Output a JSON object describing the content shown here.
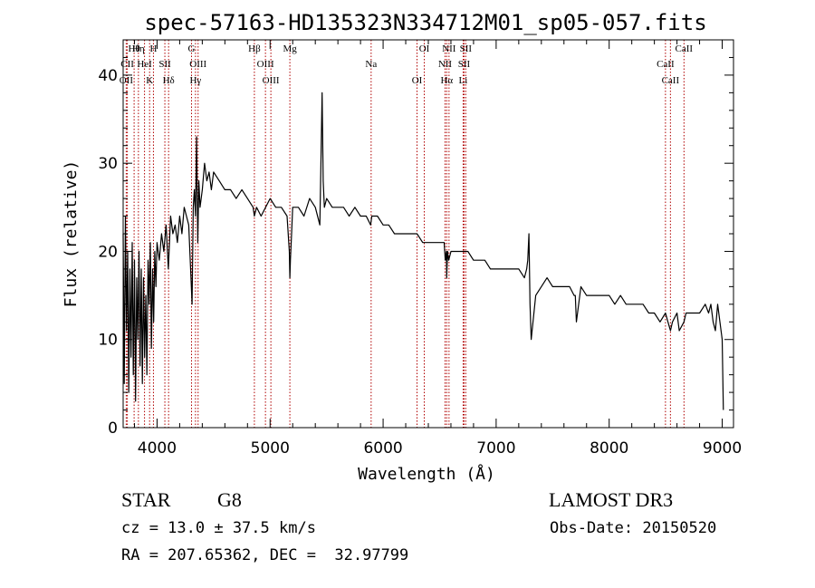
{
  "chart_data": {
    "type": "line",
    "title": "spec-57163-HD135323N334712M01_sp05-057.fits",
    "xlabel": "Wavelength (Å)",
    "ylabel": "Flux (relative)",
    "xlim": [
      3700,
      9100
    ],
    "ylim": [
      0,
      44
    ],
    "xticks": [
      4000,
      5000,
      6000,
      7000,
      8000,
      9000
    ],
    "xtick_labels": [
      "4000",
      "5000",
      "6000",
      "7000",
      "8000",
      "9000"
    ],
    "yticks": [
      0,
      10,
      20,
      30,
      40
    ],
    "ytick_labels": [
      "0",
      "10",
      "20",
      "30",
      "40"
    ],
    "series": [
      {
        "name": "flux",
        "color": "#000000",
        "x": [
          3700,
          3710,
          3720,
          3730,
          3740,
          3750,
          3760,
          3770,
          3780,
          3790,
          3800,
          3810,
          3820,
          3830,
          3840,
          3850,
          3860,
          3870,
          3880,
          3890,
          3900,
          3910,
          3920,
          3930,
          3940,
          3950,
          3960,
          3970,
          3980,
          3990,
          4000,
          4020,
          4040,
          4060,
          4080,
          4100,
          4120,
          4140,
          4160,
          4180,
          4200,
          4220,
          4240,
          4260,
          4280,
          4300,
          4310,
          4320,
          4330,
          4340,
          4350,
          4360,
          4370,
          4380,
          4400,
          4420,
          4440,
          4460,
          4480,
          4500,
          4550,
          4600,
          4650,
          4700,
          4750,
          4800,
          4850,
          4861,
          4880,
          4920,
          4960,
          5000,
          5050,
          5100,
          5150,
          5170,
          5175,
          5180,
          5190,
          5200,
          5250,
          5300,
          5350,
          5400,
          5440,
          5450,
          5460,
          5470,
          5480,
          5500,
          5550,
          5600,
          5650,
          5700,
          5750,
          5800,
          5850,
          5890,
          5900,
          5950,
          6000,
          6050,
          6100,
          6150,
          6200,
          6250,
          6300,
          6350,
          6400,
          6450,
          6500,
          6540,
          6550,
          6560,
          6563,
          6570,
          6580,
          6600,
          6650,
          6700,
          6750,
          6800,
          6850,
          6900,
          6950,
          7000,
          7050,
          7100,
          7150,
          7200,
          7250,
          7270,
          7280,
          7290,
          7300,
          7310,
          7350,
          7400,
          7450,
          7500,
          7550,
          7600,
          7650,
          7690,
          7700,
          7710,
          7750,
          7800,
          7850,
          7900,
          7950,
          8000,
          8050,
          8100,
          8150,
          8200,
          8250,
          8300,
          8350,
          8400,
          8450,
          8498,
          8520,
          8542,
          8560,
          8600,
          8620,
          8662,
          8680,
          8700,
          8750,
          8800,
          8850,
          8880,
          8900,
          8920,
          8940,
          8960,
          8980,
          9000,
          9010
        ],
        "y": [
          22,
          5,
          24,
          11,
          20,
          4,
          18,
          8,
          21,
          6,
          19,
          3,
          17,
          10,
          20,
          7,
          18,
          5,
          17,
          8,
          15,
          6,
          19,
          14,
          21,
          9,
          18,
          12,
          20,
          16,
          21,
          19,
          22,
          20,
          23,
          18,
          24,
          22,
          23,
          21,
          24,
          22,
          25,
          24,
          23,
          17,
          14,
          25,
          27,
          24,
          33,
          21,
          28,
          25,
          27,
          30,
          28,
          29,
          27,
          29,
          28,
          27,
          27,
          26,
          27,
          26,
          25,
          24,
          25,
          24,
          25,
          26,
          25,
          25,
          24,
          20,
          17,
          19,
          22,
          25,
          25,
          24,
          26,
          25,
          23,
          30,
          38,
          28,
          25,
          26,
          25,
          25,
          25,
          24,
          25,
          24,
          24,
          23,
          24,
          24,
          23,
          23,
          22,
          22,
          22,
          22,
          22,
          21,
          21,
          21,
          21,
          21,
          19,
          20,
          17,
          20,
          19,
          20,
          20,
          20,
          20,
          19,
          19,
          19,
          18,
          18,
          18,
          18,
          18,
          18,
          17,
          18,
          19,
          22,
          14,
          10,
          15,
          16,
          17,
          16,
          16,
          16,
          16,
          15,
          15,
          12,
          16,
          15,
          15,
          15,
          15,
          15,
          14,
          15,
          14,
          14,
          14,
          14,
          13,
          13,
          12,
          13,
          12,
          11,
          12,
          13,
          11,
          12,
          13,
          13,
          13,
          13,
          14,
          13,
          14,
          12,
          11,
          14,
          12,
          10,
          2
        ]
      }
    ],
    "lines": [
      {
        "label": "Hθ",
        "x": 3797
      },
      {
        "label": "CII",
        "x": 3737
      },
      {
        "label": "OII",
        "x": 3727
      },
      {
        "label": "Hη",
        "x": 3835
      },
      {
        "label": "HeI",
        "x": 3889
      },
      {
        "label": "K",
        "x": 3934
      },
      {
        "label": "H",
        "x": 3968
      },
      {
        "label": "SII",
        "x": 4069
      },
      {
        "label": "Hδ",
        "x": 4102
      },
      {
        "label": "G",
        "x": 4305
      },
      {
        "label": "OIII",
        "x": 4363
      },
      {
        "label": "Hγ",
        "x": 4340
      },
      {
        "label": "Hβ",
        "x": 4861
      },
      {
        "label": "OIII",
        "x": 4959
      },
      {
        "label": "OIII",
        "x": 5007
      },
      {
        "label": "Mg",
        "x": 5175
      },
      {
        "label": "Na",
        "x": 5894
      },
      {
        "label": "OI",
        "x": 6300
      },
      {
        "label": "OI",
        "x": 6364
      },
      {
        "label": "NII",
        "x": 6548
      },
      {
        "label": "Hα",
        "x": 6563
      },
      {
        "label": "NII",
        "x": 6583
      },
      {
        "label": "SII",
        "x": 6716
      },
      {
        "label": "Li",
        "x": 6708
      },
      {
        "label": "SII",
        "x": 6731
      },
      {
        "label": "CaII",
        "x": 8498
      },
      {
        "label": "CaII",
        "x": 8542
      },
      {
        "label": "CaII",
        "x": 8662
      }
    ]
  },
  "info": {
    "class": "STAR",
    "subclass": "G8",
    "survey": "LAMOST DR3",
    "cz": "cz = 13.0 ± 37.5 km/s",
    "obs_date": "Obs-Date: 20150520",
    "radec": "RA = 207.65362, DEC =  32.97799"
  }
}
